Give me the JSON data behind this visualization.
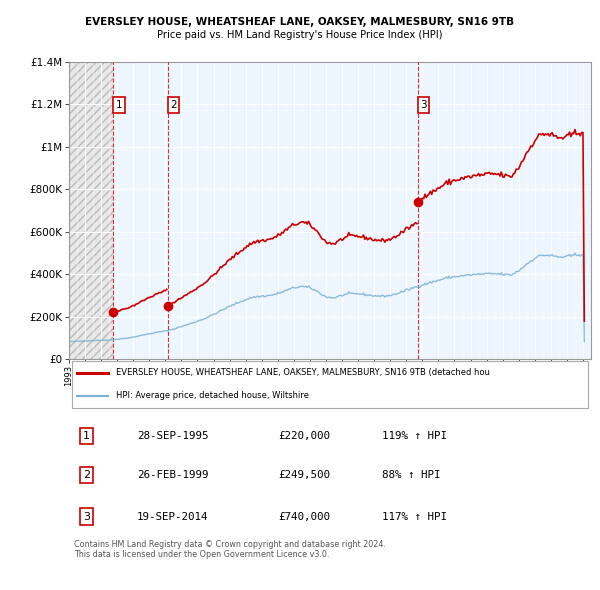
{
  "title1": "EVERSLEY HOUSE, WHEATSHEAF LANE, OAKSEY, MALMESBURY, SN16 9TB",
  "title2": "Price paid vs. HM Land Registry's House Price Index (HPI)",
  "ylim": [
    0,
    1400000
  ],
  "yticks": [
    0,
    200000,
    400000,
    600000,
    800000,
    1000000,
    1200000,
    1400000
  ],
  "ytick_labels": [
    "£0",
    "£200K",
    "£400K",
    "£600K",
    "£800K",
    "£1M",
    "£1.2M",
    "£1.4M"
  ],
  "xlim_start": 1993.0,
  "xlim_end": 2025.5,
  "purchase_dates": [
    1995.748,
    1999.146,
    2014.72
  ],
  "purchase_prices": [
    220000,
    249500,
    740000
  ],
  "purchase_labels": [
    "1",
    "2",
    "3"
  ],
  "sale_color": "#cc0000",
  "hpi_color": "#7ab0d4",
  "legend_line1": "EVERSLEY HOUSE, WHEATSHEAF LANE, OAKSEY, MALMESBURY, SN16 9TB (detached hou",
  "legend_line2": "HPI: Average price, detached house, Wiltshire",
  "table_data": [
    [
      "1",
      "28-SEP-1995",
      "£220,000",
      "119% ↑ HPI"
    ],
    [
      "2",
      "26-FEB-1999",
      "£249,500",
      "88% ↑ HPI"
    ],
    [
      "3",
      "19-SEP-2014",
      "£740,000",
      "117% ↑ HPI"
    ]
  ],
  "footnote": "Contains HM Land Registry data © Crown copyright and database right 2024.\nThis data is licensed under the Open Government Licence v3.0."
}
